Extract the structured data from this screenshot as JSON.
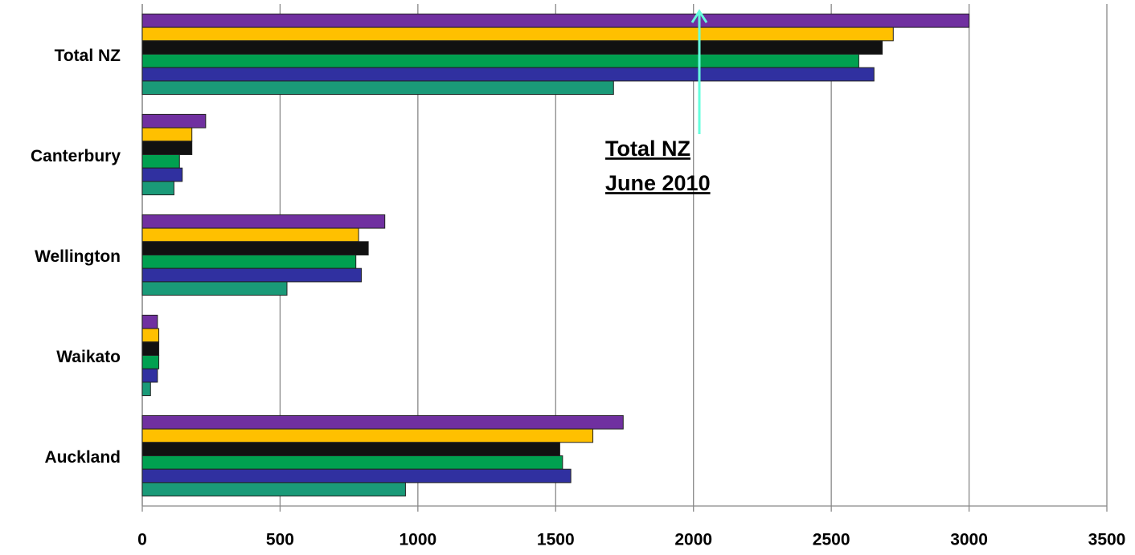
{
  "chart_data": {
    "type": "bar",
    "orientation": "horizontal",
    "categories": [
      "Total NZ",
      "Canterbury",
      "Wellington",
      "Waikato",
      "Auckland"
    ],
    "series": [
      {
        "color": "#7030a0",
        "values": [
          3000,
          230,
          880,
          55,
          1745
        ]
      },
      {
        "color": "#ffc000",
        "values": [
          2725,
          180,
          785,
          60,
          1635
        ]
      },
      {
        "color": "#111111",
        "values": [
          2685,
          180,
          820,
          60,
          1515
        ]
      },
      {
        "color": "#00a050",
        "values": [
          2600,
          135,
          775,
          60,
          1525
        ]
      },
      {
        "color": "#3030a0",
        "values": [
          2655,
          145,
          795,
          55,
          1555
        ]
      },
      {
        "color": "#1a9a78",
        "values": [
          1710,
          115,
          525,
          30,
          955
        ]
      }
    ],
    "xlim": [
      0,
      3500
    ],
    "xticks": [
      0,
      500,
      1000,
      1500,
      2000,
      2500,
      3000,
      3500
    ],
    "grid": true,
    "annotation": [
      "Total NZ",
      "June 2010"
    ]
  }
}
